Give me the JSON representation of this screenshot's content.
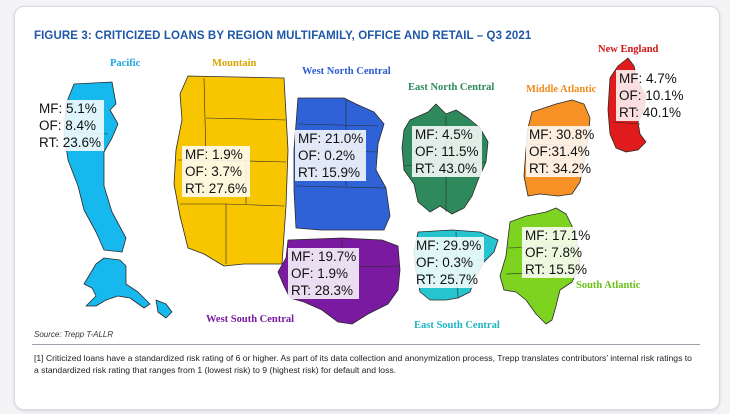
{
  "title": "FIGURE 3: CRITICIZED LOANS BY REGION MULTIFAMILY, OFFICE AND RETAIL – Q3 2021",
  "regions": {
    "pacific": {
      "name": "Pacific",
      "color": "#16b8ee",
      "label_color": "#1ba7e0",
      "mf": "MF: 5.1%",
      "of": "OF: 8.4%",
      "rt": "RT: 23.6%"
    },
    "mountain": {
      "name": "Mountain",
      "color": "#f7c600",
      "label_color": "#d7a400",
      "mf": "MF: 1.9%",
      "of": "OF: 3.7%",
      "rt": "RT: 27.6%"
    },
    "wnc": {
      "name": "West North Central",
      "color": "#2f62d6",
      "label_color": "#2b5bd0",
      "mf": "MF: 21.0%",
      "of": "OF: 0.2%",
      "rt": "RT: 15.9%"
    },
    "enc": {
      "name": "East North Central",
      "color": "#2e8a5c",
      "label_color": "#2e8a5c",
      "mf": "MF: 4.5%",
      "of": "OF: 11.5%",
      "rt": "RT: 43.0%"
    },
    "ma": {
      "name": "Middle Atlantic",
      "color": "#f59125",
      "label_color": "#f28a1a",
      "mf": "MF: 30.8%",
      "of": "OF:31.4%",
      "rt": "RT: 34.2%"
    },
    "ne": {
      "name": "New England",
      "color": "#e11b1b",
      "label_color": "#d01515",
      "mf": "MF: 4.7%",
      "of": "OF: 10.1%",
      "rt": "RT: 40.1%"
    },
    "wsc": {
      "name": "West South Central",
      "color": "#7a1aa0",
      "label_color": "#7a1aa0",
      "mf": "MF: 19.7%",
      "of": "OF: 1.9%",
      "rt": "RT: 28.3%"
    },
    "esc": {
      "name": "East South Central",
      "color": "#25c4cf",
      "label_color": "#21b4c4",
      "mf": "MF: 29.9%",
      "of": "OF: 0.3%",
      "rt": "RT: 25.7%"
    },
    "sa": {
      "name": "South Atlantic",
      "color": "#7ed321",
      "label_color": "#6cbf19",
      "mf": "MF: 17.1%",
      "of": "OF: 7.8%",
      "rt": "RT: 15.5%"
    }
  },
  "source": "Source: Trepp T-ALLR",
  "footnote": "[1] Criticized loans have a standardized risk rating of 6 or higher. As part of its data collection and anonymization process, Trepp translates contributors’ internal risk ratings to a standardized risk rating that ranges from 1 (lowest risk) to 9 (highest risk) for default and loss."
}
